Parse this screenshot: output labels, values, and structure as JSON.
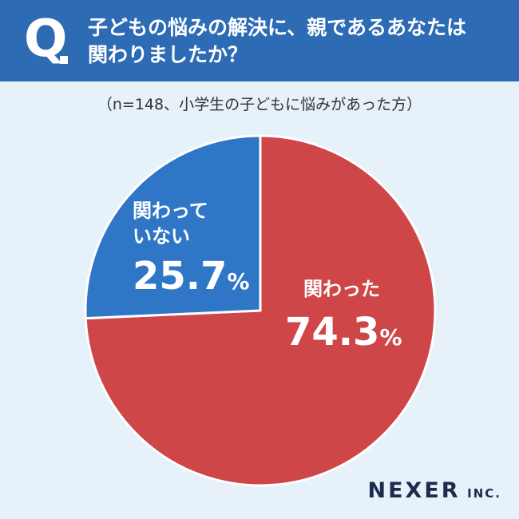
{
  "header": {
    "q_label": "Q",
    "question_line1": "子どもの悩みの解決に、親であるあなたは",
    "question_line2": "関わりましたか？"
  },
  "subtitle": "（n=148、小学生の子どもに悩みがあった方）",
  "chart_data": {
    "type": "pie",
    "slices": [
      {
        "label": "関わった",
        "value": 74.3,
        "display": "74.3",
        "color": "#cf4648"
      },
      {
        "label_lines": [
          "関わって",
          "いない"
        ],
        "value": 25.7,
        "display": "25.7",
        "color": "#2f77c6"
      }
    ],
    "unit": "%"
  },
  "brand": {
    "name": "NEXER",
    "suffix": "INC."
  }
}
